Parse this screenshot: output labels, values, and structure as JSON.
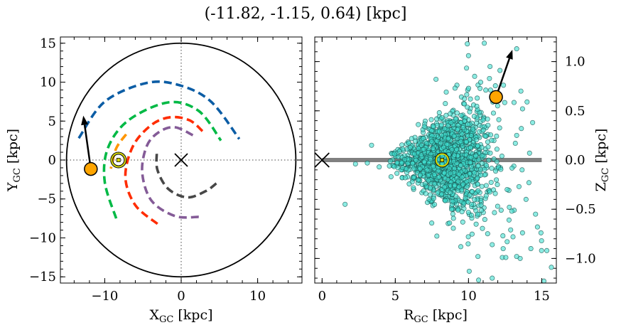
{
  "chart_data": [
    {
      "type": "line",
      "title": "(-11.82, -1.15, 0.64) [kpc]",
      "xlabel": {
        "main": "X",
        "sub": "GC",
        "unit": " [kpc]"
      },
      "ylabel": {
        "main": "Y",
        "sub": "GC",
        "unit": " [kpc]"
      },
      "xlim": [
        -15.8,
        15.8
      ],
      "ylim": [
        -15.8,
        15.8
      ],
      "xticks": [
        -10,
        0,
        10
      ],
      "xtick_labels": [
        "−10",
        "0",
        "10"
      ],
      "yticks": [
        -15,
        -10,
        -5,
        0,
        5,
        10,
        15
      ],
      "ytick_labels": [
        "−15",
        "−10",
        "−5",
        "0",
        "5",
        "10",
        "15"
      ],
      "grid": false,
      "reference_lines": {
        "x": 0,
        "y": 0,
        "style": "dotted",
        "color": "#808080"
      },
      "boundary_circle": {
        "center": [
          0,
          0
        ],
        "radius": 15,
        "color": "#000000"
      },
      "galactic_center_marker": {
        "x": 0,
        "y": 0,
        "symbol": "x"
      },
      "sun": {
        "x": -8.2,
        "y": 0,
        "color": "#d4d400"
      },
      "object": {
        "x": -11.82,
        "y": -1.15,
        "color": "#FFA500"
      },
      "velocity_arrow": {
        "from": [
          -11.82,
          -1.15
        ],
        "to": [
          -12.8,
          5.7
        ]
      },
      "series": [
        {
          "color": "#0C5DA5",
          "style": "dashed",
          "x": [
            -13.4,
            -10.0,
            -4.5,
            -0.2,
            3.9,
            7.6
          ],
          "y": [
            2.8,
            7.5,
            9.9,
            9.6,
            7.5,
            2.7
          ]
        },
        {
          "color": "#00B945",
          "style": "dashed",
          "x": [
            -8.5,
            -10.0,
            -9.6,
            -6.9,
            -1.7,
            2.3,
            5.2
          ],
          "y": [
            -7.5,
            -2.8,
            1.5,
            5.1,
            7.4,
            6.3,
            2.5
          ]
        },
        {
          "color": "#FF9500",
          "style": "dashed",
          "x": [
            -7.2,
            -8.5,
            -9.2
          ],
          "y": [
            3.3,
            1.5,
            -1.1
          ]
        },
        {
          "color": "#FF2C00",
          "style": "dashed",
          "x": [
            -3.1,
            -6.0,
            -7.3,
            -6.3,
            -3.9,
            -1.4,
            1.1,
            2.8
          ],
          "y": [
            -8.2,
            -5.8,
            -2.2,
            1.8,
            4.5,
            5.5,
            5.1,
            3.7
          ]
        },
        {
          "color": "#845B97",
          "style": "dashed",
          "x": [
            2.3,
            -0.8,
            -3.9,
            -5.1,
            -4.5,
            -2.9,
            -0.8,
            1.7
          ],
          "y": [
            -7.3,
            -7.2,
            -5.2,
            -1.6,
            1.8,
            3.6,
            4.2,
            3.1
          ]
        },
        {
          "color": "#474747",
          "style": "dashed",
          "x": [
            -3.2,
            -3.1,
            -1.7,
            0.8,
            3.2,
            4.6
          ],
          "y": [
            0.8,
            -1.3,
            -3.7,
            -4.8,
            -4.0,
            -3.0
          ]
        }
      ]
    },
    {
      "type": "scatter",
      "xlabel": {
        "main": "R",
        "sub": "GC",
        "unit": " [kpc]"
      },
      "ylabel": {
        "main": "Z",
        "sub": "GC",
        "unit": " [kpc]"
      },
      "ylabel_position": "right",
      "xlim": [
        -0.5,
        16.0
      ],
      "ylim": [
        -1.25,
        1.25
      ],
      "xticks": [
        0,
        5,
        10,
        15
      ],
      "xtick_labels": [
        "0",
        "5",
        "10",
        "15"
      ],
      "yticks": [
        -1.0,
        -0.5,
        0.0,
        0.5,
        1.0
      ],
      "ytick_labels": [
        "−1.0",
        "−0.5",
        "0.0",
        "0.5",
        "1.0"
      ],
      "grid": false,
      "point_color": "#40E0D0",
      "disk_line": {
        "x": [
          0,
          15
        ],
        "y": 0,
        "color": "#808080"
      },
      "galactic_center_marker": {
        "x": 0,
        "y": 0,
        "symbol": "x"
      },
      "sun": {
        "x": 8.2,
        "y": 0,
        "color": "#d4d400"
      },
      "object": {
        "x": 11.88,
        "y": 0.64,
        "color": "#FFA500"
      },
      "velocity_arrow": {
        "from": [
          11.88,
          0.64
        ],
        "to": [
          13.0,
          1.12
        ]
      },
      "core_distribution": {
        "r_mean": 8.6,
        "r_sd": 1.5,
        "z_mean": 0.0
      },
      "points": [
        [
          9.92,
          1.18
        ],
        [
          10.0,
          1.06
        ],
        [
          11.47,
          0.95
        ],
        [
          12.15,
          0.91
        ],
        [
          13.29,
          1.13
        ],
        [
          7.78,
          0.82
        ],
        [
          10.42,
          0.85
        ],
        [
          10.83,
          0.79
        ],
        [
          13.58,
          0.7
        ],
        [
          14.0,
          0.59
        ],
        [
          14.38,
          0.38
        ],
        [
          14.17,
          0.07
        ],
        [
          8.48,
          0.69
        ],
        [
          3.38,
          0.15
        ],
        [
          2.28,
          -0.04
        ],
        [
          3.09,
          -0.03
        ],
        [
          1.57,
          -0.45
        ],
        [
          7.49,
          -0.64
        ],
        [
          9.61,
          -0.63
        ],
        [
          14.58,
          -0.55
        ],
        [
          14.71,
          -0.68
        ],
        [
          14.95,
          -0.74
        ],
        [
          14.99,
          -0.82
        ],
        [
          15.35,
          -0.92
        ],
        [
          14.99,
          -0.92
        ],
        [
          14.26,
          -0.9
        ],
        [
          15.66,
          -1.09
        ],
        [
          15.15,
          -1.23
        ],
        [
          10.05,
          -1.13
        ],
        [
          10.69,
          -1.22
        ],
        [
          11.62,
          -1.2
        ],
        [
          12.31,
          -0.99
        ],
        [
          12.55,
          -0.99
        ],
        [
          13.29,
          -0.98
        ],
        [
          13.53,
          -1.0
        ],
        [
          11.62,
          -0.86
        ],
        [
          12.64,
          -0.83
        ],
        [
          13.04,
          -0.78
        ],
        [
          12.35,
          -0.77
        ],
        [
          13.69,
          -0.74
        ],
        [
          12.88,
          -0.71
        ],
        [
          12.77,
          -0.61
        ],
        [
          10.62,
          -0.55
        ],
        [
          13.12,
          -0.51
        ],
        [
          13.93,
          -0.4
        ],
        [
          14.13,
          -0.23
        ],
        [
          13.66,
          -0.1
        ],
        [
          13.69,
          0.52
        ],
        [
          13.61,
          0.32
        ],
        [
          13.29,
          0.25
        ],
        [
          13.2,
          0.17
        ],
        [
          9.21,
          0.76
        ],
        [
          9.08,
          0.73
        ],
        [
          6.57,
          0.36
        ],
        [
          6.98,
          0.34
        ],
        [
          8.75,
          0.47
        ],
        [
          7.46,
          0.41
        ],
        [
          10.13,
          0.62
        ],
        [
          11.18,
          0.71
        ],
        [
          12.39,
          0.76
        ],
        [
          11.99,
          0.55
        ],
        [
          9.72,
          0.57
        ],
        [
          4.71,
          -0.17
        ],
        [
          5.68,
          -0.18
        ],
        [
          3.9,
          -0.07
        ],
        [
          7.05,
          -0.24
        ],
        [
          7.62,
          -0.39
        ],
        [
          8.75,
          -0.33
        ],
        [
          8.92,
          -0.42
        ],
        [
          9.69,
          -0.44
        ],
        [
          10.21,
          -0.45
        ],
        [
          10.86,
          -0.46
        ],
        [
          10.89,
          -0.51
        ],
        [
          11.99,
          -0.47
        ],
        [
          12.23,
          -0.51
        ],
        [
          12.96,
          -0.52
        ],
        [
          11.83,
          -0.34
        ],
        [
          12.64,
          -0.3
        ],
        [
          13.45,
          -0.27
        ]
      ]
    }
  ]
}
